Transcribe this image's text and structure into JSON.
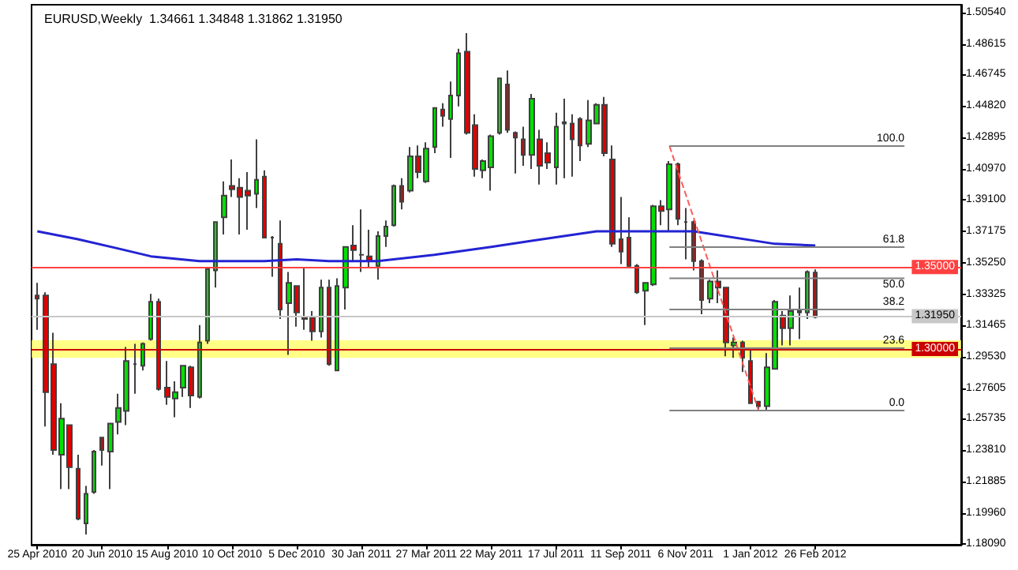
{
  "chart_data": {
    "type": "candlestick",
    "title": "EURUSD,Weekly  1.34661 1.34848 1.31862 1.31950",
    "x": [
      "2010-04-25",
      "2010-05-02",
      "2010-05-09",
      "2010-05-16",
      "2010-05-23",
      "2010-05-30",
      "2010-06-06",
      "2010-06-13",
      "2010-06-20",
      "2010-06-27",
      "2010-07-04",
      "2010-07-11",
      "2010-07-18",
      "2010-07-25",
      "2010-08-01",
      "2010-08-08",
      "2010-08-15",
      "2010-08-22",
      "2010-08-29",
      "2010-09-05",
      "2010-09-12",
      "2010-09-19",
      "2010-09-26",
      "2010-10-03",
      "2010-10-10",
      "2010-10-17",
      "2010-10-24",
      "2010-10-31",
      "2010-11-07",
      "2010-11-14",
      "2010-11-21",
      "2010-11-28",
      "2010-12-05",
      "2010-12-12",
      "2010-12-19",
      "2010-12-26",
      "2011-01-02",
      "2011-01-09",
      "2011-01-16",
      "2011-01-23",
      "2011-01-30",
      "2011-02-06",
      "2011-02-13",
      "2011-02-20",
      "2011-02-27",
      "2011-03-06",
      "2011-03-13",
      "2011-03-20",
      "2011-03-27",
      "2011-04-03",
      "2011-04-10",
      "2011-04-17",
      "2011-04-24",
      "2011-05-01",
      "2011-05-08",
      "2011-05-15",
      "2011-05-22",
      "2011-05-29",
      "2011-06-05",
      "2011-06-12",
      "2011-06-19",
      "2011-06-26",
      "2011-07-03",
      "2011-07-10",
      "2011-07-17",
      "2011-07-24",
      "2011-07-31",
      "2011-08-07",
      "2011-08-14",
      "2011-08-21",
      "2011-08-28",
      "2011-09-04",
      "2011-09-11",
      "2011-09-18",
      "2011-09-25",
      "2011-10-02",
      "2011-10-09",
      "2011-10-16",
      "2011-10-23",
      "2011-10-30",
      "2011-11-06",
      "2011-11-13",
      "2011-11-20",
      "2011-11-27",
      "2011-12-04",
      "2011-12-11",
      "2011-12-18",
      "2011-12-25",
      "2012-01-01",
      "2012-01-08",
      "2012-01-15",
      "2012-01-22",
      "2012-01-29",
      "2012-02-05",
      "2012-02-12",
      "2012-02-19",
      "2012-02-26"
    ],
    "ohlc": [
      [
        1.3326,
        1.3403,
        1.3117,
        1.3307
      ],
      [
        1.3326,
        1.3345,
        1.2526,
        1.2736
      ],
      [
        1.2907,
        1.3098,
        1.2354,
        1.2383
      ],
      [
        1.2354,
        1.2669,
        1.2145,
        1.2574
      ],
      [
        1.2535,
        1.2535,
        1.2145,
        1.2278
      ],
      [
        1.2269,
        1.2354,
        1.1954,
        1.1964
      ],
      [
        1.1935,
        1.2164,
        1.1868,
        1.2116
      ],
      [
        1.2126,
        1.2383,
        1.2116,
        1.2373
      ],
      [
        1.2459,
        1.2459,
        1.2288,
        1.2383
      ],
      [
        1.2373,
        1.2545,
        1.2145,
        1.2545
      ],
      [
        1.2554,
        1.2726,
        1.2478,
        1.264
      ],
      [
        1.2621,
        1.3012,
        1.2535,
        1.2926
      ],
      [
        1.2907,
        1.3031,
        1.2726,
        1.2907
      ],
      [
        1.2897,
        1.304,
        1.2869,
        1.3031
      ],
      [
        1.306,
        1.3336,
        1.305,
        1.3288
      ],
      [
        1.3288,
        1.3307,
        1.2745,
        1.2755
      ],
      [
        1.2764,
        1.2926,
        1.2659,
        1.2707
      ],
      [
        1.2697,
        1.2802,
        1.2583,
        1.2736
      ],
      [
        1.2764,
        1.2897,
        1.2707,
        1.2897
      ],
      [
        1.2888,
        1.2897,
        1.264,
        1.2716
      ],
      [
        1.2707,
        1.3145,
        1.2697,
        1.304
      ],
      [
        1.305,
        1.3488,
        1.3031,
        1.3488
      ],
      [
        1.3479,
        1.3774,
        1.3374,
        1.3774
      ],
      [
        1.3803,
        1.4022,
        1.3698,
        1.3936
      ],
      [
        1.3994,
        1.4156,
        1.3927,
        1.3974
      ],
      [
        1.3984,
        1.4041,
        1.3698,
        1.3927
      ],
      [
        1.3965,
        1.4079,
        1.3727,
        1.3936
      ],
      [
        1.3946,
        1.4279,
        1.386,
        1.4032
      ],
      [
        1.4051,
        1.4089,
        1.3679,
        1.3679
      ],
      [
        1.3679,
        1.3689,
        1.3441,
        1.3679
      ],
      [
        1.3641,
        1.3784,
        1.3183,
        1.3241
      ],
      [
        1.3279,
        1.3469,
        1.2964,
        1.3403
      ],
      [
        1.3384,
        1.3384,
        1.3136,
        1.3222
      ],
      [
        1.3193,
        1.3498,
        1.3117,
        1.3183
      ],
      [
        1.3193,
        1.3231,
        1.305,
        1.3107
      ],
      [
        1.3107,
        1.3422,
        1.3069,
        1.3374
      ],
      [
        1.3374,
        1.3422,
        1.2897,
        1.2907
      ],
      [
        1.2869,
        1.3431,
        1.2869,
        1.3384
      ],
      [
        1.3374,
        1.3622,
        1.3241,
        1.3622
      ],
      [
        1.3631,
        1.3755,
        1.3536,
        1.3603
      ],
      [
        1.3574,
        1.3851,
        1.3469,
        1.3574
      ],
      [
        1.3565,
        1.3727,
        1.3498,
        1.3536
      ],
      [
        1.3507,
        1.3717,
        1.3422,
        1.3689
      ],
      [
        1.3689,
        1.3784,
        1.3622,
        1.3746
      ],
      [
        1.3755,
        1.4003,
        1.3746,
        1.3994
      ],
      [
        1.3994,
        1.4041,
        1.3851,
        1.3898
      ],
      [
        1.3965,
        1.4232,
        1.3955,
        1.4175
      ],
      [
        1.4175,
        1.4241,
        1.4041,
        1.4079
      ],
      [
        1.4022,
        1.426,
        1.4013,
        1.4222
      ],
      [
        1.4232,
        1.447,
        1.4194,
        1.447
      ],
      [
        1.446,
        1.4499,
        1.4356,
        1.4422
      ],
      [
        1.4403,
        1.4632,
        1.4165,
        1.4546
      ],
      [
        1.4546,
        1.4832,
        1.448,
        1.4804
      ],
      [
        1.4813,
        1.4927,
        1.4308,
        1.4318
      ],
      [
        1.4365,
        1.4432,
        1.4051,
        1.4098
      ],
      [
        1.4089,
        1.4156,
        1.4041,
        1.4146
      ],
      [
        1.4108,
        1.4308,
        1.3965,
        1.4298
      ],
      [
        1.4318,
        1.4651,
        1.4308,
        1.4651
      ],
      [
        1.4613,
        1.4699,
        1.4318,
        1.4337
      ],
      [
        1.4318,
        1.4327,
        1.407,
        1.4289
      ],
      [
        1.4279,
        1.4356,
        1.4117,
        1.4184
      ],
      [
        1.4184,
        1.4556,
        1.4098,
        1.4527
      ],
      [
        1.4279,
        1.4337,
        1.4003,
        1.4117
      ],
      [
        1.4194,
        1.426,
        1.4098,
        1.4136
      ],
      [
        1.4108,
        1.4441,
        1.4003,
        1.4356
      ],
      [
        1.4375,
        1.4527,
        1.4041,
        1.4384
      ],
      [
        1.4375,
        1.4432,
        1.4051,
        1.4279
      ],
      [
        1.4403,
        1.4413,
        1.4146,
        1.4241
      ],
      [
        1.4251,
        1.4518,
        1.4232,
        1.4394
      ],
      [
        1.4375,
        1.4499,
        1.4375,
        1.4489
      ],
      [
        1.4489,
        1.4537,
        1.4175,
        1.4194
      ],
      [
        1.4156,
        1.4241,
        1.3622,
        1.3641
      ],
      [
        1.3669,
        1.3927,
        1.3517,
        1.3593
      ],
      [
        1.3679,
        1.3803,
        1.3498,
        1.3507
      ],
      [
        1.3507,
        1.3517,
        1.3336,
        1.3345
      ],
      [
        1.3355,
        1.3403,
        1.3145,
        1.3403
      ],
      [
        1.3393,
        1.3879,
        1.3384,
        1.387
      ],
      [
        1.387,
        1.3908,
        1.3755,
        1.3841
      ],
      [
        1.3851,
        1.4146,
        1.3717,
        1.4127
      ],
      [
        1.4127,
        1.4136,
        1.3755,
        1.3793
      ],
      [
        1.3774,
        1.386,
        1.3546,
        1.3774
      ],
      [
        1.3774,
        1.3784,
        1.3479,
        1.3536
      ],
      [
        1.3536,
        1.3546,
        1.3212,
        1.3298
      ],
      [
        1.3307,
        1.3422,
        1.3279,
        1.3412
      ],
      [
        1.3412,
        1.3479,
        1.3279,
        1.3374
      ],
      [
        1.3374,
        1.3374,
        1.2955,
        1.304
      ],
      [
        1.3021,
        1.3069,
        1.2945,
        1.304
      ],
      [
        1.304,
        1.305,
        1.2859,
        1.2945
      ],
      [
        1.2926,
        1.2993,
        1.2669,
        1.2669
      ],
      [
        1.2678,
        1.2678,
        1.2621,
        1.265
      ],
      [
        1.265,
        1.2974,
        1.2621,
        1.2888
      ],
      [
        1.2878,
        1.3298,
        1.2878,
        1.3288
      ],
      [
        1.3203,
        1.3231,
        1.3021,
        1.3126
      ],
      [
        1.3126,
        1.3326,
        1.3021,
        1.3231
      ],
      [
        1.3231,
        1.3374,
        1.306,
        1.3222
      ],
      [
        1.3222,
        1.3479,
        1.3183,
        1.3469
      ],
      [
        1.34661,
        1.34848,
        1.31862,
        1.3195
      ]
    ],
    "colors": [
      "#e00000",
      "#e00000",
      "#e00000",
      "#00e000",
      "#e00000",
      "#e00000",
      "#00e000",
      "#00e000",
      "#e00000",
      "#00e000",
      "#00e000",
      "#00e000",
      "#303030",
      "#00e000",
      "#00e000",
      "#e00000",
      "#e00000",
      "#00e000",
      "#00e000",
      "#e00000",
      "#00e000",
      "#00e000",
      "#00e000",
      "#00e000",
      "#e00000",
      "#e00000",
      "#e00000",
      "#00e000",
      "#e00000",
      "#303030",
      "#e00000",
      "#00e000",
      "#e00000",
      "#e00000",
      "#e00000",
      "#00e000",
      "#e00000",
      "#00e000",
      "#00e000",
      "#e00000",
      "#303030",
      "#e00000",
      "#00e000",
      "#00e000",
      "#00e000",
      "#e00000",
      "#00e000",
      "#e00000",
      "#00e000",
      "#00e000",
      "#e00000",
      "#00e000",
      "#00e000",
      "#e00000",
      "#e00000",
      "#00e000",
      "#00e000",
      "#00e000",
      "#e00000",
      "#e00000",
      "#e00000",
      "#00e000",
      "#e00000",
      "#e00000",
      "#00e000",
      "#00e000",
      "#e00000",
      "#e00000",
      "#00e000",
      "#00e000",
      "#e00000",
      "#e00000",
      "#e00000",
      "#e00000",
      "#e00000",
      "#00e000",
      "#00e000",
      "#e00000",
      "#00e000",
      "#e00000",
      "#303030",
      "#e00000",
      "#e00000",
      "#00e000",
      "#e00000",
      "#e00000",
      "#00e000",
      "#e00000",
      "#e00000",
      "#e00000",
      "#00e000",
      "#00e000",
      "#e00000",
      "#00e000",
      "#e00000",
      "#00e000",
      "#e00000"
    ],
    "series": [
      {
        "type": "line",
        "color": "#2323d2",
        "x": [
          "2010-04-25",
          "2010-05-30",
          "2010-07-04",
          "2010-08-01",
          "2010-09-12",
          "2010-11-07",
          "2010-12-05",
          "2011-01-02",
          "2011-02-13",
          "2011-04-03",
          "2011-05-22",
          "2011-06-26",
          "2011-08-21",
          "2011-10-16",
          "2011-11-13",
          "2012-01-22",
          "2012-02-26"
        ],
        "values": [
          1.3717,
          1.3669,
          1.3612,
          1.3565,
          1.3536,
          1.3536,
          1.3546,
          1.3536,
          1.3536,
          1.3574,
          1.3622,
          1.366,
          1.3717,
          1.3717,
          1.3717,
          1.3641,
          1.3631
        ]
      },
      {
        "type": "line",
        "color": "#ff5a5a",
        "line_style": "dashed",
        "x": [
          "2011-10-23",
          "2012-01-08"
        ],
        "values": [
          1.4238,
          1.2624
        ]
      },
      {
        "type": "line",
        "name": "100.0",
        "color": "#808080",
        "x": [
          "2011-10-23",
          "2012-05-13"
        ],
        "values": [
          1.4238,
          1.4238
        ]
      },
      {
        "type": "line",
        "name": "61.8",
        "color": "#808080",
        "x": [
          "2011-10-23",
          "2012-05-13"
        ],
        "values": [
          1.3621,
          1.3621
        ]
      },
      {
        "type": "line",
        "name": "50.0",
        "color": "#808080",
        "x": [
          "2011-10-23",
          "2012-05-13"
        ],
        "values": [
          1.3431,
          1.3431
        ]
      },
      {
        "type": "line",
        "name": "38.2",
        "color": "#808080",
        "x": [
          "2011-10-23",
          "2012-05-13"
        ],
        "values": [
          1.3241,
          1.3241
        ]
      },
      {
        "type": "line",
        "name": "23.6",
        "color": "#808080",
        "x": [
          "2011-10-23",
          "2012-05-13"
        ],
        "values": [
          1.3005,
          1.3005
        ]
      },
      {
        "type": "line",
        "name": "0.0",
        "color": "#808080",
        "x": [
          "2011-10-23",
          "2012-05-13"
        ],
        "values": [
          1.2624,
          1.2624
        ]
      }
    ],
    "xlim": [
      "2010-04-20",
      "2012-07-01"
    ],
    "xticks": [
      {
        "value": "2010-04-25",
        "label": "25 Apr 2010"
      },
      {
        "value": "2010-06-20",
        "label": "20 Jun 2010"
      },
      {
        "value": "2010-08-15",
        "label": "15 Aug 2010"
      },
      {
        "value": "2010-10-10",
        "label": "10 Oct 2010"
      },
      {
        "value": "2010-12-05",
        "label": "5 Dec 2010"
      },
      {
        "value": "2011-01-30",
        "label": "30 Jan 2011"
      },
      {
        "value": "2011-03-27",
        "label": "27 Mar 2011"
      },
      {
        "value": "2011-05-22",
        "label": "22 May 2011"
      },
      {
        "value": "2011-07-17",
        "label": "17 Jul 2011"
      },
      {
        "value": "2011-09-11",
        "label": "11 Sep 2011"
      },
      {
        "value": "2011-11-06",
        "label": "6 Nov 2011"
      },
      {
        "value": "2012-01-01",
        "label": "1 Jan 2012"
      },
      {
        "value": "2012-02-26",
        "label": "26 Feb 2012"
      }
    ],
    "ylim": [
      1.1805,
      1.51
    ],
    "yticks": [
      {
        "value": 1.5054,
        "label": "1.50540"
      },
      {
        "value": 1.48615,
        "label": "1.48615"
      },
      {
        "value": 1.46745,
        "label": "1.46745"
      },
      {
        "value": 1.4482,
        "label": "1.44820"
      },
      {
        "value": 1.42895,
        "label": "1.42895"
      },
      {
        "value": 1.4097,
        "label": "1.40970"
      },
      {
        "value": 1.391,
        "label": "1.39100"
      },
      {
        "value": 1.37175,
        "label": "1.37175"
      },
      {
        "value": 1.3525,
        "label": "1.35250"
      },
      {
        "value": 1.33325,
        "label": "1.33325"
      },
      {
        "value": 1.31465,
        "label": "1.31465"
      },
      {
        "value": 1.2953,
        "label": "1.29530"
      },
      {
        "value": 1.27605,
        "label": "1.27605"
      },
      {
        "value": 1.25735,
        "label": "1.25735"
      },
      {
        "value": 1.2381,
        "label": "1.23810"
      },
      {
        "value": 1.21885,
        "label": "1.21885"
      },
      {
        "value": 1.1996,
        "label": "1.19960"
      },
      {
        "value": 1.1809,
        "label": "1.18090"
      }
    ],
    "ref_lines": [
      {
        "axis": "y",
        "value": 1.35,
        "label": "1.35000",
        "color": "#ff4040"
      },
      {
        "axis": "y",
        "value": 1.3195,
        "label": "1.31950",
        "color": "#c8c8c8"
      },
      {
        "axis": "y",
        "value": 1.3,
        "label": "1.30000",
        "color": "#cc0000"
      }
    ],
    "bands": [
      {
        "axis": "y",
        "from": 1.2945,
        "to": 1.3053,
        "color": "#ffff66"
      }
    ]
  }
}
